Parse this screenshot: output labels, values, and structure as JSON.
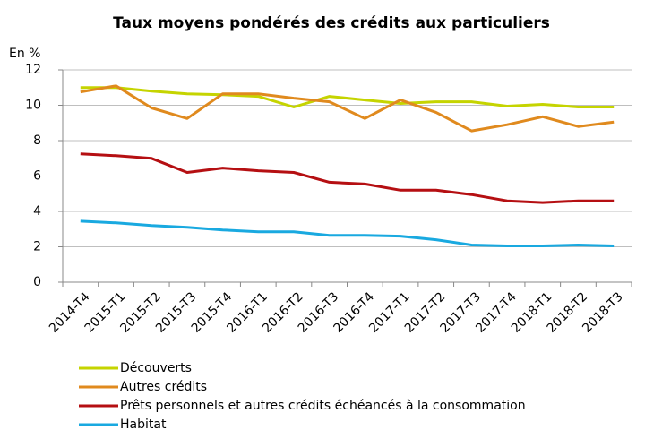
{
  "chart_data": {
    "type": "line",
    "title": "Taux moyens pondérés des crédits aux particuliers",
    "y_label": "En %",
    "categories": [
      "2014-T4",
      "2015-T1",
      "2015-T2",
      "2015-T3",
      "2015-T4",
      "2016-T1",
      "2016-T2",
      "2016-T3",
      "2016-T4",
      "2017-T1",
      "2017-T2",
      "2017-T3",
      "2017-T4",
      "2018-T1",
      "2018-T2",
      "2018-T3"
    ],
    "series": [
      {
        "name": "Découverts",
        "color": "#c5d400",
        "values": [
          11.0,
          11.0,
          10.8,
          10.65,
          10.6,
          10.5,
          9.9,
          10.5,
          10.3,
          10.1,
          10.2,
          10.2,
          9.95,
          10.05,
          9.9,
          9.9
        ]
      },
      {
        "name": "Autres crédits",
        "color": "#e08a1e",
        "values": [
          10.75,
          11.1,
          9.85,
          9.25,
          10.65,
          10.65,
          10.4,
          10.2,
          9.25,
          10.3,
          9.6,
          8.55,
          8.9,
          9.35,
          8.8,
          9.05
        ]
      },
      {
        "name": "Prêts personnels et autres crédits échéancés à la consommation",
        "color": "#b50f12",
        "values": [
          7.25,
          7.15,
          7.0,
          6.2,
          6.45,
          6.3,
          6.2,
          5.65,
          5.55,
          5.2,
          5.2,
          4.95,
          4.6,
          4.5,
          4.6,
          4.6
        ]
      },
      {
        "name": "Habitat",
        "color": "#19a9e0",
        "values": [
          3.45,
          3.35,
          3.2,
          3.1,
          2.95,
          2.85,
          2.85,
          2.65,
          2.65,
          2.6,
          2.4,
          2.1,
          2.05,
          2.05,
          2.1,
          2.05
        ]
      }
    ],
    "ylim": [
      0,
      12
    ],
    "yticks": [
      0,
      2,
      4,
      6,
      8,
      10,
      12
    ],
    "grid": true
  }
}
